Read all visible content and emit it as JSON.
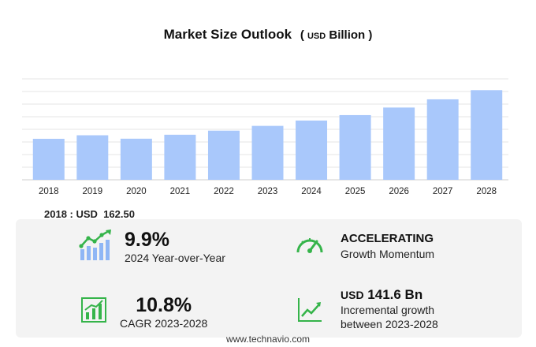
{
  "header": {
    "title": "Market Size Outlook",
    "unit_prefix": "USD",
    "unit_suffix": "Billion"
  },
  "base": {
    "label": "2018 : USD",
    "value": "162.50"
  },
  "kpis": {
    "yoy": {
      "value": "9.9%",
      "label": "2024 Year-over-Year"
    },
    "momentum": {
      "value": "ACCELERATING",
      "label": "Growth Momentum"
    },
    "cagr": {
      "value": "10.8%",
      "label": "CAGR 2023-2028"
    },
    "incremental": {
      "prefix": "USD",
      "value": "141.6 Bn",
      "line1": "Incremental growth",
      "line2": "between 2023-2028"
    }
  },
  "footer": {
    "url": "www.technavio.com"
  },
  "colors": {
    "bar": "#a9c8fb",
    "icon_green": "#35b44a",
    "icon_blue": "#8fb6f5",
    "panel": "#f3f3f3"
  },
  "chart_data": {
    "type": "bar",
    "title": "Market Size Outlook (USD Billion)",
    "categories": [
      "2018",
      "2019",
      "2020",
      "2021",
      "2022",
      "2023",
      "2024",
      "2025",
      "2026",
      "2027",
      "2028"
    ],
    "values": [
      162.5,
      176.5,
      162.9,
      178.6,
      194.7,
      213.7,
      234.9,
      256.4,
      286.4,
      318.9,
      355.3
    ],
    "ylim": [
      0,
      400
    ],
    "grid": true
  }
}
